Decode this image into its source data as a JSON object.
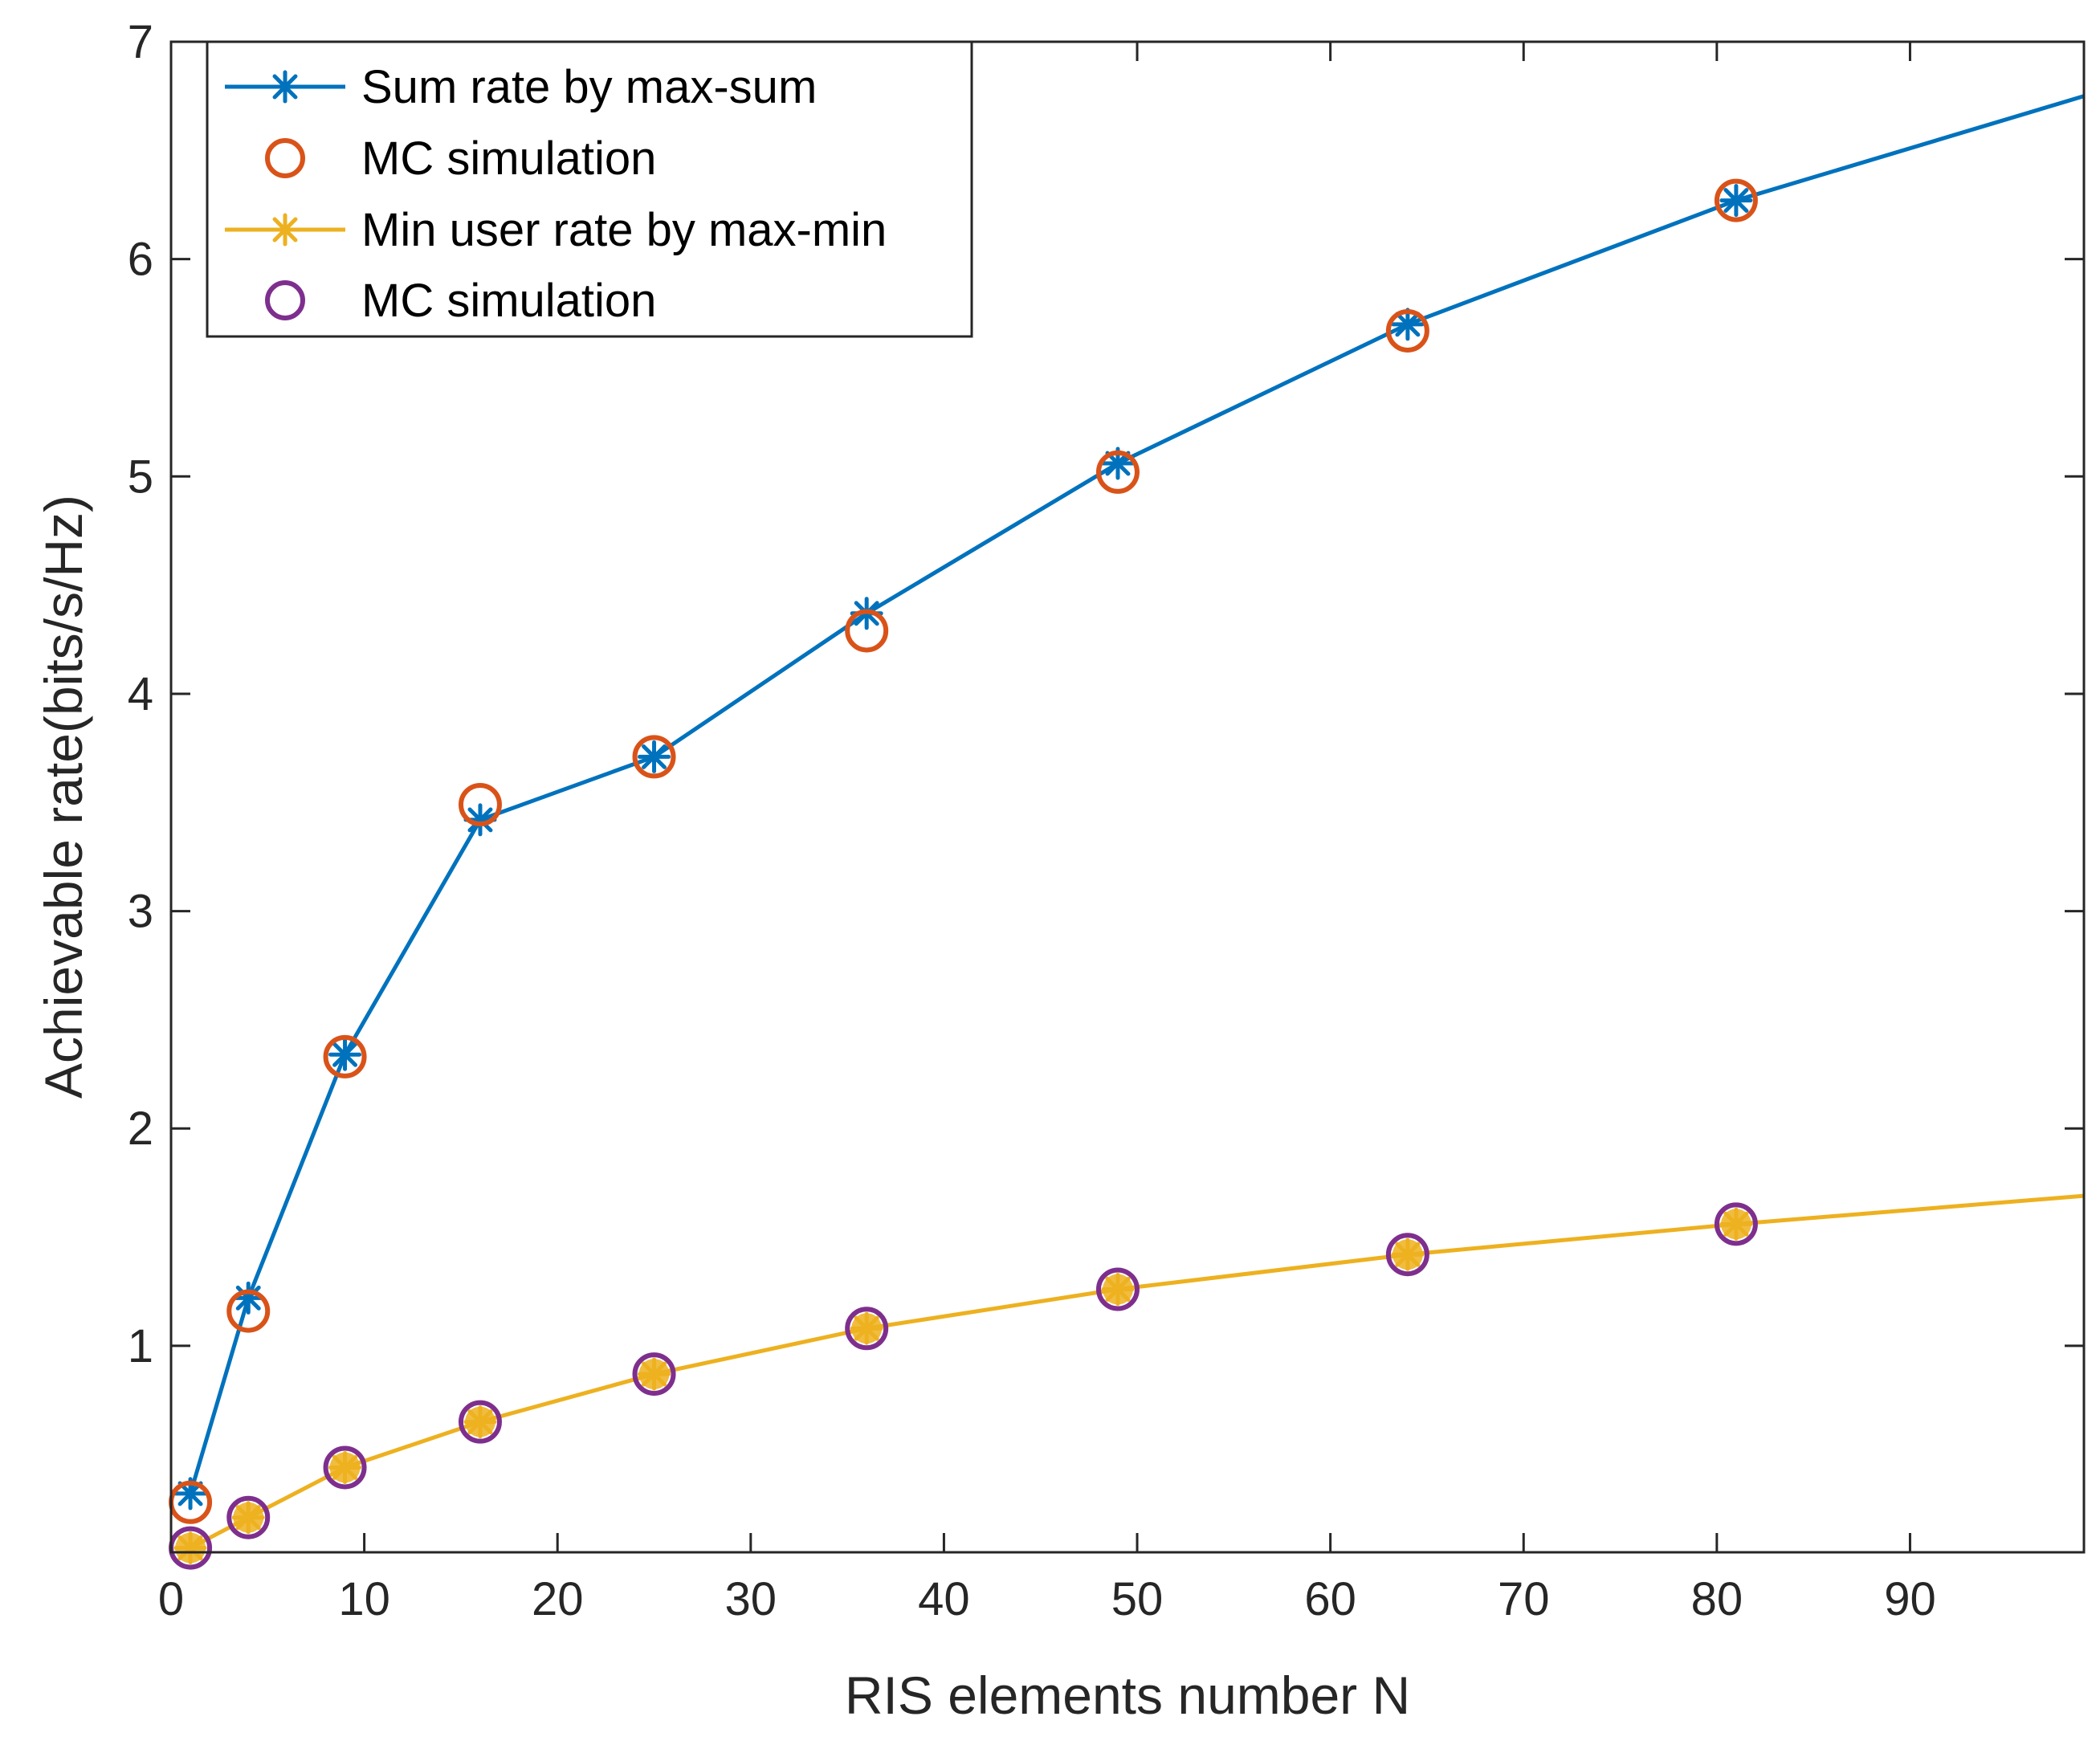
{
  "chart_data": {
    "type": "line",
    "xlabel": "RIS elements number N",
    "ylabel": "Achievable rate(bits/s/Hz)",
    "xlim": [
      0,
      99
    ],
    "ylim": [
      0.05,
      7
    ],
    "xticks": [
      0,
      10,
      20,
      30,
      40,
      50,
      60,
      70,
      80,
      90
    ],
    "yticks": [
      1,
      2,
      3,
      4,
      5,
      6,
      7
    ],
    "grid": false,
    "legend_position": "top-left",
    "series": [
      {
        "name": "Sum rate by max-sum",
        "style": "line-star",
        "color": "#0072BD",
        "x": [
          1,
          4,
          9,
          16,
          25,
          36,
          49,
          64,
          81,
          99
        ],
        "y": [
          0.32,
          1.22,
          2.34,
          3.42,
          3.71,
          4.37,
          5.06,
          5.7,
          6.27,
          6.75
        ],
        "marker_points": 9
      },
      {
        "name": "MC simulation",
        "style": "circle",
        "color": "#D95319",
        "x": [
          1,
          4,
          9,
          16,
          25,
          36,
          49,
          64,
          81
        ],
        "y": [
          0.28,
          1.16,
          2.33,
          3.49,
          3.71,
          4.29,
          5.02,
          5.67,
          6.27
        ]
      },
      {
        "name": "Min user rate by max-min",
        "style": "line-star",
        "color": "#EDB120",
        "x": [
          1,
          4,
          9,
          16,
          25,
          36,
          49,
          64,
          81,
          99
        ],
        "y": [
          0.07,
          0.21,
          0.44,
          0.65,
          0.87,
          1.08,
          1.26,
          1.42,
          1.56,
          1.69
        ],
        "marker_points": 9
      },
      {
        "name": "MC simulation",
        "style": "circle",
        "color": "#7E2F8E",
        "x": [
          1,
          4,
          9,
          16,
          25,
          36,
          49,
          64,
          81
        ],
        "y": [
          0.07,
          0.21,
          0.44,
          0.65,
          0.87,
          1.08,
          1.26,
          1.42,
          1.56
        ]
      }
    ]
  }
}
